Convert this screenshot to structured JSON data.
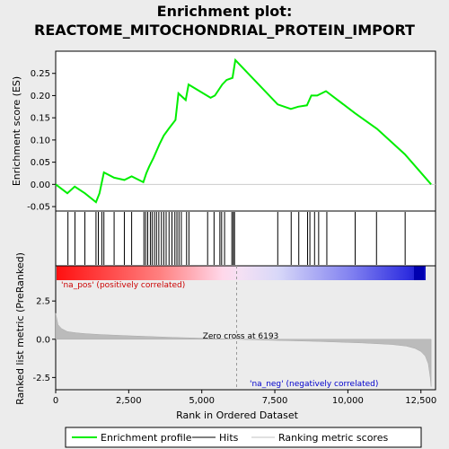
{
  "chart_data": {
    "type": "line",
    "title_line1": "Enrichment plot:",
    "title_line2": "REACTOME_MITOCHONDRIAL_PROTEIN_IMPORT",
    "top_panel": {
      "ylabel": "Enrichment score (ES)",
      "ylim": [
        -0.06,
        0.3
      ],
      "yticks": [
        "0.25",
        "0.20",
        "0.15",
        "0.10",
        "0.05",
        "0.00",
        "-0.05"
      ],
      "ytick_values": [
        0.25,
        0.2,
        0.15,
        0.1,
        0.05,
        0.0,
        -0.05
      ],
      "series_name": "Enrichment profile",
      "color": "#00ee00",
      "x": [
        0,
        400,
        650,
        1000,
        1380,
        1500,
        1650,
        2000,
        2350,
        2600,
        3000,
        3100,
        3200,
        3350,
        3550,
        3700,
        3900,
        4100,
        4200,
        4450,
        4550,
        5300,
        5450,
        5700,
        5850,
        6050,
        6100,
        6150,
        7600,
        8050,
        8300,
        8600,
        8750,
        8950,
        9250,
        10250,
        11000,
        11950,
        12850
      ],
      "y": [
        0.0,
        -0.02,
        -0.005,
        -0.02,
        -0.04,
        -0.02,
        0.027,
        0.015,
        0.01,
        0.018,
        0.005,
        0.025,
        0.04,
        0.06,
        0.09,
        0.11,
        0.128,
        0.145,
        0.205,
        0.19,
        0.225,
        0.195,
        0.2,
        0.225,
        0.235,
        0.24,
        0.26,
        0.28,
        0.18,
        0.17,
        0.175,
        0.178,
        0.2,
        0.2,
        0.21,
        0.16,
        0.125,
        0.068,
        0.0
      ]
    },
    "hits": [
      420,
      660,
      1000,
      1380,
      1460,
      1580,
      1650,
      2000,
      2350,
      2600,
      3020,
      3080,
      3150,
      3240,
      3300,
      3380,
      3450,
      3530,
      3620,
      3700,
      3780,
      3880,
      3980,
      4080,
      4150,
      4220,
      4300,
      4480,
      4560,
      5200,
      5420,
      5620,
      5680,
      5780,
      6030,
      6080,
      6120,
      7600,
      8060,
      8320,
      8620,
      8700,
      8860,
      9000,
      9280,
      10250,
      10980,
      11960
    ],
    "ranked_metric": {
      "ylabel": "Ranked list metric (PreRanked)",
      "ylim": [
        -3.3,
        4.8
      ],
      "yticks": [
        "2.5",
        "0.0",
        "-2.5"
      ],
      "ytick_values": [
        2.5,
        0.0,
        -2.5
      ],
      "series_name": "Ranking metric scores",
      "x": [
        0,
        80,
        200,
        400,
        700,
        1000,
        1500,
        2500,
        4000,
        5500,
        6193,
        7500,
        9000,
        10500,
        11500,
        12000,
        12300,
        12500,
        12650,
        12750,
        12820,
        12850
      ],
      "y": [
        1.7,
        0.95,
        0.7,
        0.5,
        0.42,
        0.37,
        0.31,
        0.23,
        0.12,
        0.04,
        0.0,
        -0.07,
        -0.14,
        -0.24,
        -0.34,
        -0.45,
        -0.6,
        -0.8,
        -1.1,
        -1.6,
        -2.5,
        -3.1
      ]
    },
    "xlabel": "Rank in Ordered Dataset",
    "xlim": [
      0,
      13000
    ],
    "xticks": [
      "0",
      "2,500",
      "5,000",
      "7,500",
      "10,000",
      "12,500"
    ],
    "xtick_values": [
      0,
      2500,
      5000,
      7500,
      10000,
      12500
    ],
    "dataset_size": 12850,
    "zero_cross": 6193,
    "zero_cross_label": "Zero cross at 6193",
    "pos_label": "'na_pos' (positively correlated)",
    "neg_label": "'na_neg' (negatively correlated)",
    "legend": [
      {
        "name": "Enrichment profile",
        "color": "#00ee00"
      },
      {
        "name": "Hits",
        "color": "#000000"
      },
      {
        "name": "Ranking metric scores",
        "color": "#c0c0c0"
      }
    ]
  }
}
